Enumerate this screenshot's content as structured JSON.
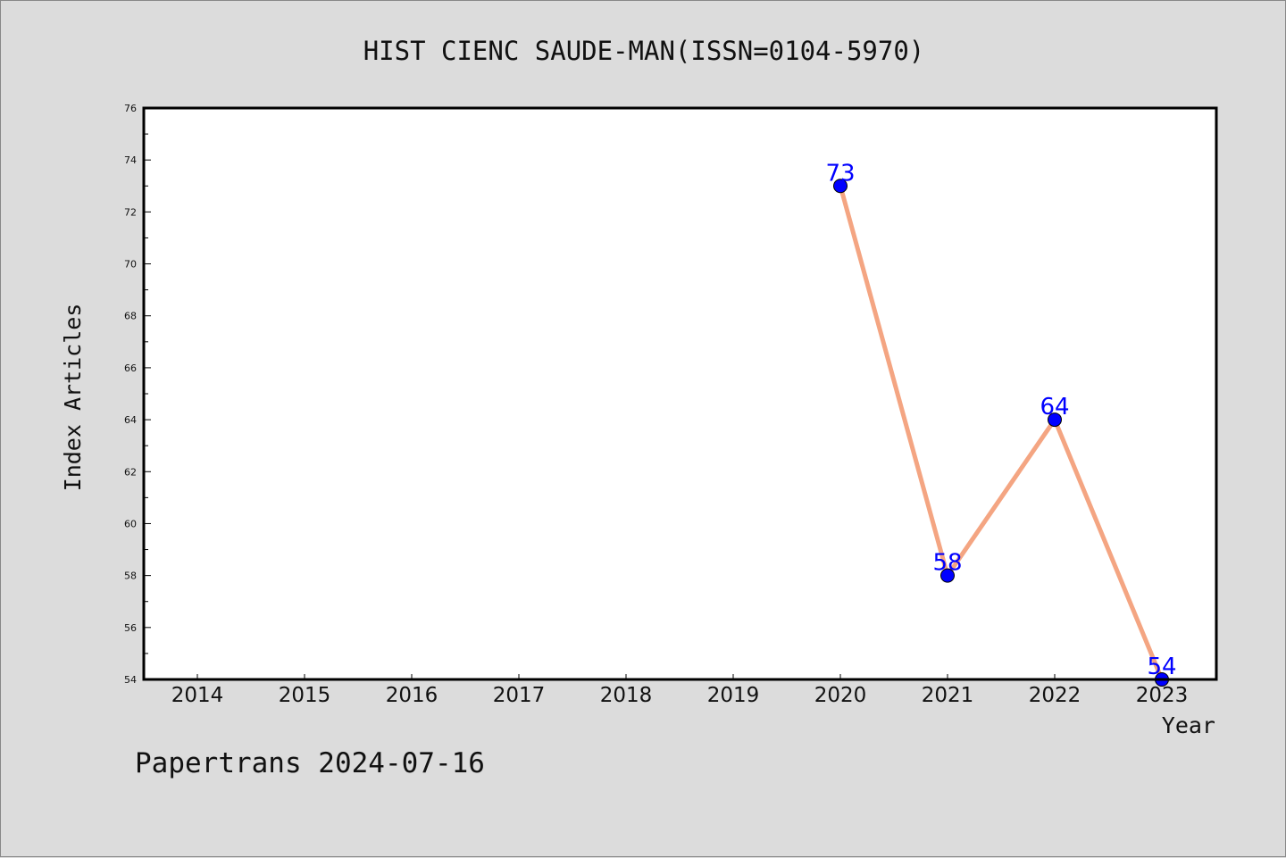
{
  "chart_data": {
    "type": "line",
    "title": "HIST CIENC SAUDE-MAN(ISSN=0104-5970)",
    "xlabel": "Year",
    "ylabel": "Index Articles",
    "categories": [
      "2014",
      "2015",
      "2016",
      "2017",
      "2018",
      "2019",
      "2020",
      "2021",
      "2022",
      "2023"
    ],
    "series": [
      {
        "x": [
          "2020",
          "2021",
          "2022",
          "2023"
        ],
        "values": [
          73,
          58,
          64,
          54
        ],
        "line_color": "#f4a582",
        "marker_color": "#0000ff"
      }
    ],
    "ylim": [
      54,
      76
    ],
    "yticks": [
      "54",
      "56",
      "58",
      "60",
      "62",
      "64",
      "66",
      "68",
      "70",
      "72",
      "74",
      "76"
    ],
    "data_label_color": "#0000ff",
    "grid": false,
    "legend": "none"
  },
  "footer": {
    "text": "Papertrans 2024-07-16"
  }
}
